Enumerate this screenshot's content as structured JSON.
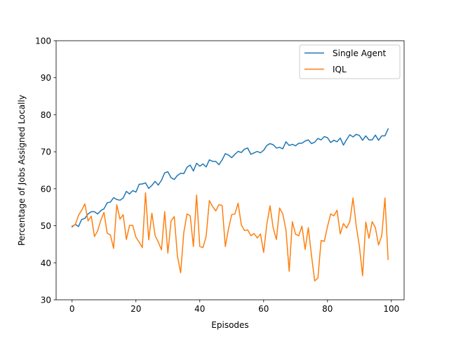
{
  "chart_data": {
    "type": "line",
    "title": "",
    "xlabel": "Episodes",
    "ylabel": "Percentage of Jobs Assigned Locally",
    "xlim": [
      -5,
      104
    ],
    "ylim": [
      30,
      100
    ],
    "xticks": [
      0,
      20,
      40,
      60,
      80,
      100
    ],
    "yticks": [
      30,
      40,
      50,
      60,
      70,
      80,
      90,
      100
    ],
    "grid": false,
    "legend_position": "top-right",
    "series": [
      {
        "name": "Single Agent",
        "color": "#1f77b4",
        "x": [
          0,
          1,
          2,
          3,
          4,
          5,
          6,
          7,
          8,
          9,
          10,
          11,
          12,
          13,
          14,
          15,
          16,
          17,
          18,
          19,
          20,
          21,
          22,
          23,
          24,
          25,
          26,
          27,
          28,
          29,
          30,
          31,
          32,
          33,
          34,
          35,
          36,
          37,
          38,
          39,
          40,
          41,
          42,
          43,
          44,
          45,
          46,
          47,
          48,
          49,
          50,
          51,
          52,
          53,
          54,
          55,
          56,
          57,
          58,
          59,
          60,
          61,
          62,
          63,
          64,
          65,
          66,
          67,
          68,
          69,
          70,
          71,
          72,
          73,
          74,
          75,
          76,
          77,
          78,
          79,
          80,
          81,
          82,
          83,
          84,
          85,
          86,
          87,
          88,
          89,
          90,
          91,
          92,
          93,
          94,
          95,
          96,
          97,
          98,
          99
        ],
        "values": [
          49.7,
          50.4,
          49.8,
          51.7,
          52.0,
          53.2,
          53.8,
          53.8,
          53.2,
          54.1,
          54.6,
          56.2,
          56.4,
          57.6,
          57.1,
          56.9,
          57.5,
          59.3,
          58.6,
          59.5,
          59.1,
          61.2,
          61.3,
          61.6,
          60.1,
          60.9,
          62.0,
          61.0,
          62.3,
          64.3,
          64.6,
          63.0,
          62.5,
          63.6,
          64.2,
          64.1,
          65.8,
          66.4,
          64.8,
          66.9,
          66.1,
          66.7,
          65.9,
          67.8,
          67.4,
          67.4,
          66.5,
          67.8,
          69.5,
          69.1,
          68.4,
          69.3,
          70.1,
          69.8,
          70.7,
          71.0,
          69.3,
          69.7,
          70.1,
          69.7,
          70.4,
          71.7,
          72.2,
          71.9,
          71.0,
          71.2,
          70.8,
          72.7,
          71.7,
          72.0,
          71.6,
          72.3,
          72.3,
          72.9,
          73.2,
          72.2,
          72.6,
          73.6,
          73.2,
          74.1,
          73.8,
          72.5,
          73.1,
          72.7,
          73.7,
          71.8,
          73.3,
          74.6,
          74.0,
          74.7,
          74.4,
          73.1,
          74.3,
          73.2,
          73.2,
          74.5,
          73.1,
          74.3,
          74.3,
          76.2
        ]
      },
      {
        "name": "IQL",
        "color": "#ff7f0e",
        "x": [
          0,
          1,
          2,
          3,
          4,
          5,
          6,
          7,
          8,
          9,
          10,
          11,
          12,
          13,
          14,
          15,
          16,
          17,
          18,
          19,
          20,
          21,
          22,
          23,
          24,
          25,
          26,
          27,
          28,
          29,
          30,
          31,
          32,
          33,
          34,
          35,
          36,
          37,
          38,
          39,
          40,
          41,
          42,
          43,
          44,
          45,
          46,
          47,
          48,
          49,
          50,
          51,
          52,
          53,
          54,
          55,
          56,
          57,
          58,
          59,
          60,
          61,
          62,
          63,
          64,
          65,
          66,
          67,
          68,
          69,
          70,
          71,
          72,
          73,
          74,
          75,
          76,
          77,
          78,
          79,
          80,
          81,
          82,
          83,
          84,
          85,
          86,
          87,
          88,
          89,
          90,
          91,
          92,
          93,
          94,
          95,
          96,
          97,
          98,
          99
        ],
        "values": [
          49.9,
          50.3,
          52.8,
          54.2,
          55.9,
          51.3,
          52.6,
          47.1,
          48.6,
          51.5,
          53.6,
          48.0,
          47.5,
          43.9,
          55.7,
          51.8,
          53.0,
          46.3,
          50.1,
          50.1,
          46.9,
          45.6,
          44.1,
          58.9,
          46.2,
          53.4,
          47.4,
          45.6,
          43.5,
          53.8,
          42.6,
          51.3,
          52.5,
          41.8,
          37.3,
          48.2,
          53.2,
          52.7,
          44.4,
          58.3,
          44.4,
          44.1,
          47.2,
          56.8,
          55.2,
          54.0,
          55.7,
          55.5,
          44.4,
          49.2,
          53.0,
          53.2,
          56.1,
          50.3,
          48.7,
          48.9,
          47.3,
          47.9,
          46.7,
          47.8,
          42.8,
          50.4,
          55.4,
          49.4,
          46.3,
          54.8,
          53.2,
          48.8,
          37.7,
          51.1,
          47.7,
          47.3,
          49.9,
          43.6,
          49.5,
          41.9,
          35.1,
          35.9,
          46.0,
          45.8,
          49.8,
          53.2,
          52.7,
          54.2,
          47.8,
          50.6,
          49.4,
          51.2,
          57.5,
          50.0,
          44.4,
          36.5,
          51.0,
          46.6,
          51.1,
          49.5,
          44.8,
          47.3,
          57.5,
          40.9
        ]
      }
    ]
  }
}
